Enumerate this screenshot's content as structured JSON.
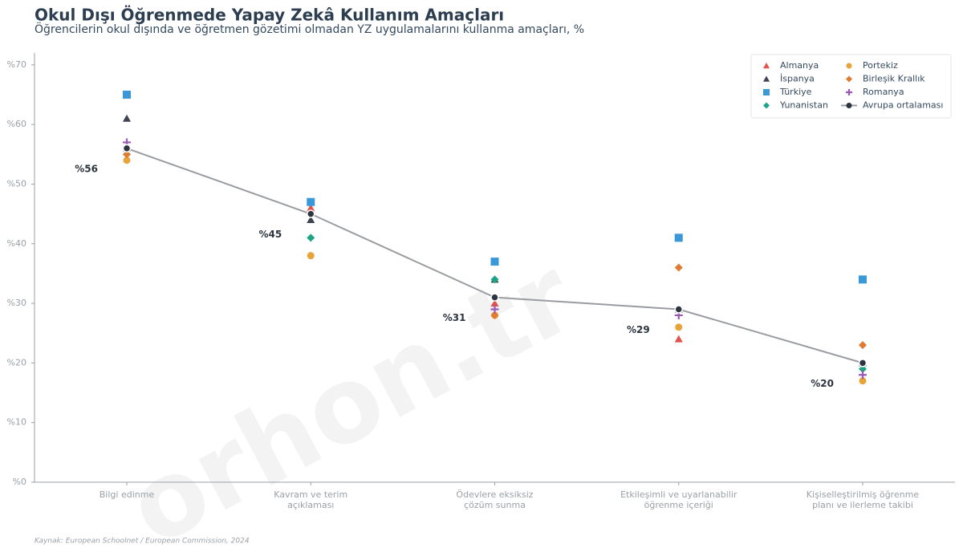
{
  "chart_data": {
    "type": "scatter-line",
    "title": "Okul Dışı Öğrenmede Yapay Zekâ Kullanım Amaçları",
    "subtitle": "Öğrencilerin okul dışında ve öğretmen gözetimi olmadan YZ uygulamalarını kullanma amaçları, %",
    "source": "Kaynak: European Schoolnet / European Commission, 2024",
    "watermark": "orhon.tr",
    "categories": [
      "Bilgi edinme",
      "Kavram ve terim\naçıklaması",
      "Ödevlere eksiksiz\nçözüm sunma",
      "Etkileşimli ve uyarlanabilir\nöğrenme içeriği",
      "Kişiselleştirilmiş öğrenme\nplanı ve ilerleme takibi"
    ],
    "ylim": [
      0,
      72
    ],
    "yticks": [
      {
        "value": 0,
        "label": "%0"
      },
      {
        "value": 10,
        "label": "%10"
      },
      {
        "value": 20,
        "label": "%20"
      },
      {
        "value": 30,
        "label": "%30"
      },
      {
        "value": 40,
        "label": "%40"
      },
      {
        "value": 50,
        "label": "%50"
      },
      {
        "value": 60,
        "label": "%60"
      },
      {
        "value": 70,
        "label": "%70"
      }
    ],
    "legend": "upper right",
    "series": [
      {
        "name": "Almanya",
        "color": "#e0524a",
        "marker": "triangle",
        "values": [
          56,
          46,
          30,
          24,
          20
        ]
      },
      {
        "name": "İspanya",
        "color": "#3d4450",
        "marker": "triangle",
        "values": [
          61,
          44,
          34,
          29,
          20
        ]
      },
      {
        "name": "Türkiye",
        "color": "#3a97d8",
        "marker": "square",
        "values": [
          65,
          47,
          37,
          41,
          34
        ]
      },
      {
        "name": "Yunanistan",
        "color": "#1fa386",
        "marker": "diamond",
        "values": [
          55,
          41,
          34,
          29,
          19
        ]
      },
      {
        "name": "Portekiz",
        "color": "#e8a33a",
        "marker": "circle",
        "values": [
          54,
          38,
          28,
          26,
          17
        ]
      },
      {
        "name": "Birleşik Krallık",
        "color": "#e07c32",
        "marker": "diamond",
        "values": [
          55,
          45,
          28,
          36,
          23
        ]
      },
      {
        "name": "Romanya",
        "color": "#9b59b6",
        "marker": "plus",
        "values": [
          57,
          45,
          29,
          28,
          18
        ]
      },
      {
        "name": "Avrupa ortalaması",
        "color": "#999ca1",
        "marker_color": "#2c3440",
        "marker": "line",
        "values": [
          56,
          45,
          31,
          29,
          20
        ],
        "value_labels": [
          "%56",
          "%45",
          "%31",
          "%29",
          "%20"
        ]
      }
    ]
  }
}
